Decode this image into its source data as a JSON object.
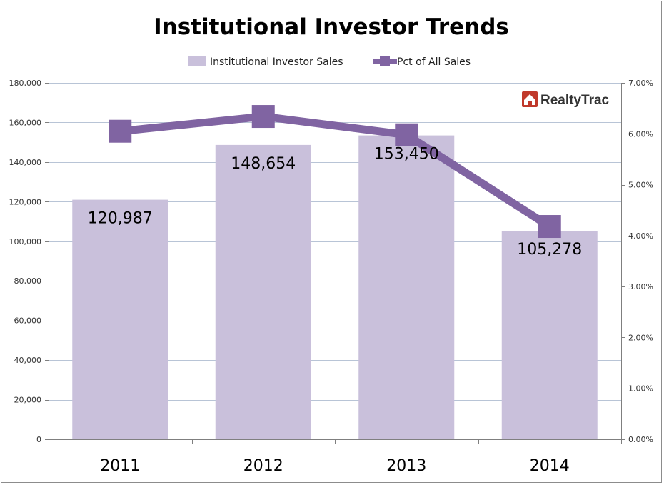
{
  "chart_data": {
    "type": "bar",
    "title": "Institutional Investor Trends",
    "categories": [
      "2011",
      "2012",
      "2013",
      "2014"
    ],
    "series": [
      {
        "name": "Institutional Investor Sales",
        "type": "bar",
        "axis": "left",
        "color": "#c9c0db",
        "values": [
          120987,
          148654,
          153450,
          105278
        ],
        "data_labels": [
          "120,987",
          "148,654",
          "153,450",
          "105,278"
        ]
      },
      {
        "name": "Pct of All Sales",
        "type": "line",
        "axis": "right",
        "color": "#8064a2",
        "values": [
          0.0605,
          0.0634,
          0.0598,
          0.0418
        ]
      }
    ],
    "y_left": {
      "min": 0,
      "max": 180000,
      "ticks": [
        0,
        20000,
        40000,
        60000,
        80000,
        100000,
        120000,
        140000,
        160000,
        180000
      ],
      "tick_labels": [
        "0",
        "20,000",
        "40,000",
        "60,000",
        "80,000",
        "100,000",
        "120,000",
        "140,000",
        "160,000",
        "180,000"
      ]
    },
    "y_right": {
      "min": 0,
      "max": 0.07,
      "ticks": [
        0,
        0.01,
        0.02,
        0.03,
        0.04,
        0.05,
        0.06,
        0.07
      ],
      "tick_labels": [
        "0.00%",
        "1.00%",
        "2.00%",
        "3.00%",
        "4.00%",
        "5.00%",
        "6.00%",
        "7.00%"
      ]
    },
    "grid": true,
    "legend_position": "top-center"
  },
  "logo": {
    "text": "RealtyTrac",
    "brand_color": "#c0392b"
  }
}
